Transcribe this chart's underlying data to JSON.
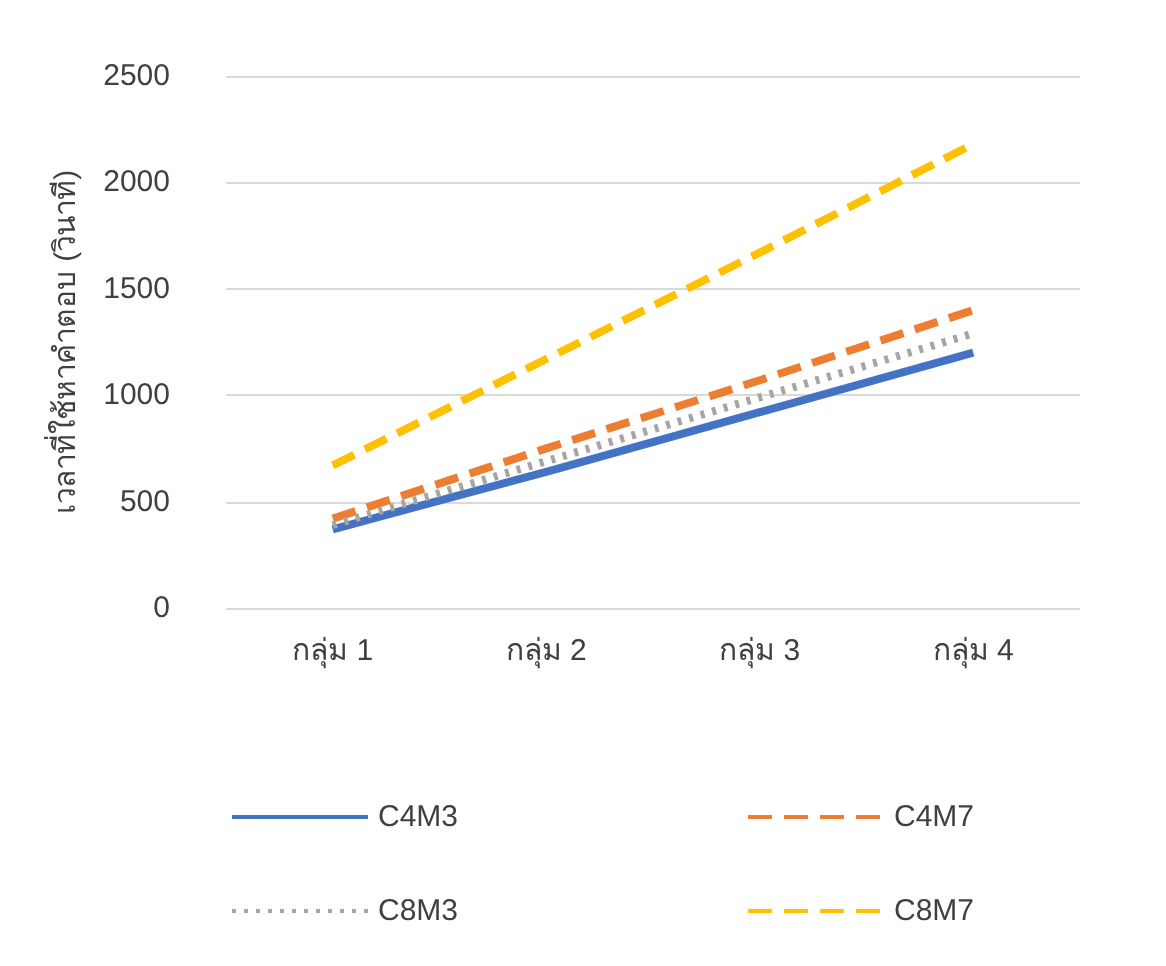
{
  "chart_data": {
    "type": "line",
    "ylabel": "เวลาที่ใช้หาคำตอบ (วินาที)",
    "categories": [
      "กลุ่ม 1",
      "กลุ่ม 2",
      "กลุ่ม 3",
      "กลุ่ม 4"
    ],
    "series": [
      {
        "name": "C4M3",
        "color": "#4472c4",
        "line_style": "solid",
        "values": [
          370,
          640,
          920,
          1200
        ]
      },
      {
        "name": "C4M7",
        "color": "#ed7d31",
        "line_style": "dashed",
        "values": [
          420,
          750,
          1070,
          1400
        ]
      },
      {
        "name": "C8M3",
        "color": "#a5a5a5",
        "line_style": "dotted",
        "values": [
          390,
          690,
          990,
          1290
        ]
      },
      {
        "name": "C8M7",
        "color": "#ffc000",
        "line_style": "dashed",
        "values": [
          670,
          1170,
          1670,
          2180
        ]
      }
    ],
    "ylim": [
      0,
      2500
    ],
    "yticks": [
      0,
      500,
      1000,
      1500,
      2000,
      2500
    ],
    "grid": "y",
    "legend": "bottom",
    "marker": "none"
  }
}
